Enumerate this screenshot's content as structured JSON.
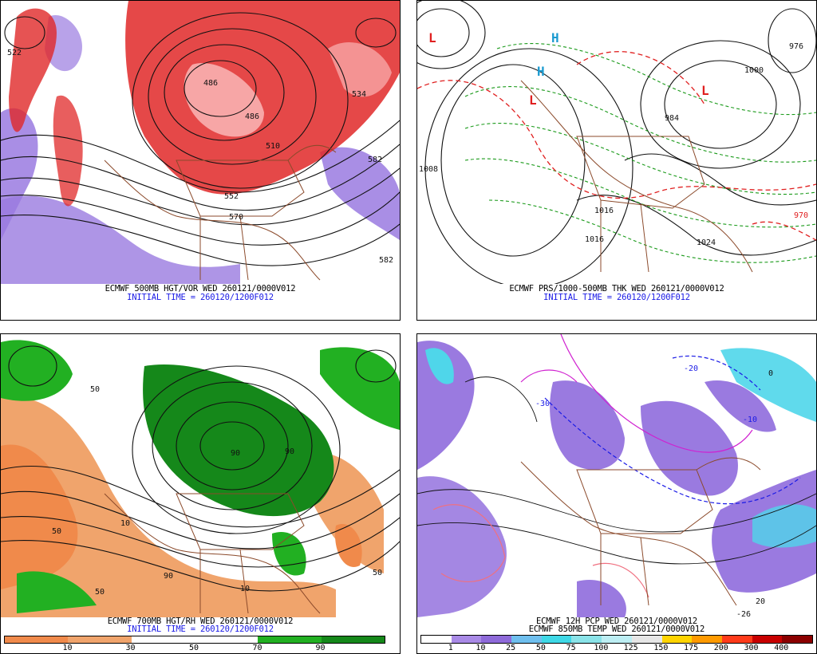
{
  "panels": [
    {
      "id": "p1",
      "caption_line1": "ECMWF 500MB HGT/VOR WED 260121/0000V012",
      "caption_line2": "INITIAL TIME = 260120/1200F012",
      "contour_labels": [
        "522",
        "486",
        "486",
        "510",
        "534",
        "582",
        "552",
        "570",
        "582"
      ]
    },
    {
      "id": "p2",
      "caption_line1": "ECMWF PRS/1000-500MB THK WED 260121/0000V012",
      "caption_line2": "INITIAL TIME = 260120/1200F012",
      "contour_labels": [
        "1008",
        "1016",
        "1016",
        "1024",
        "1000",
        "976",
        "970",
        "984"
      ],
      "symbols": [
        "L",
        "H",
        "H",
        "L",
        "L"
      ]
    },
    {
      "id": "p3",
      "caption_line1": "ECMWF 700MB HGT/RH WED 260121/0000V012",
      "caption_line2": "INITIAL TIME = 260120/1200F012",
      "contour_labels": [
        "50",
        "90",
        "90",
        "10",
        "50",
        "50",
        "90",
        "10",
        "50"
      ],
      "colorbar": {
        "colors": [
          "#f08a4b",
          "#f0a46c",
          "#ffffff",
          "#ffffff",
          "#22b022",
          "#15881a"
        ],
        "labels": [
          "10",
          "30",
          "50",
          "70",
          "90"
        ]
      }
    },
    {
      "id": "p4",
      "caption_line1": "ECMWF 12H PCP WED 260121/0000V012",
      "caption_line2": "ECMWF 850MB TEMP WED 260121/0000V012",
      "contour_labels": [
        "-10",
        "-20",
        "-30",
        "0",
        "20",
        "-26"
      ],
      "colorbar": {
        "colors": [
          "#ffffff",
          "#a98ae6",
          "#8e6ad9",
          "#6fbfee",
          "#3fd8e6",
          "#8ae3e8",
          "#bdeef3",
          "#e6e6e6",
          "#ffd400",
          "#ff9a00",
          "#ff3b1a",
          "#c80000",
          "#8b0000"
        ],
        "labels": [
          "1",
          "10",
          "25",
          "50",
          "75",
          "100",
          "125",
          "150",
          "175",
          "200",
          "300",
          "400"
        ]
      }
    }
  ],
  "colors": {
    "vorticity_red": "#e02828",
    "vorticity_light": "#f7a6a6",
    "vorticity_purple": "#8a5ae0",
    "coastline_brown": "#8b4a2b",
    "isobar_black": "#111111",
    "thickness_green": "#1a9a1a",
    "thickness_red": "#e02020",
    "rh_green": "#15881a",
    "rh_orange": "#f0a46c",
    "pcp_purple": "#9a7ae0",
    "pcp_cyan": "#4fd6ea",
    "temp_magenta": "#d020d0",
    "temp_blue": "#1a1ae6",
    "temp_pink": "#f07080"
  }
}
